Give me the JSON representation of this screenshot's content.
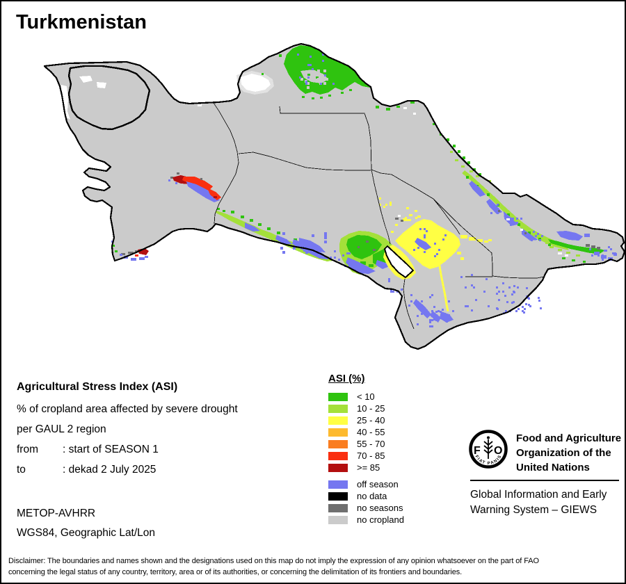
{
  "title": "Turkmenistan",
  "info": {
    "heading": "Agricultural Stress Index (ASI)",
    "subtitle_line1": "% of cropland area affected by severe drought",
    "subtitle_line2": "per GAUL 2 region",
    "from_label": "from",
    "from_value": ": start of SEASON 1",
    "to_label": "to",
    "to_value": ": dekad 2 July 2025",
    "sensor": "METOP-AVHRR",
    "projection": "WGS84, Geographic Lat/Lon"
  },
  "legend": {
    "title": "ASI (%)",
    "asi_classes": [
      {
        "label": "< 10",
        "color": "#2FC30F"
      },
      {
        "label": "10 - 25",
        "color": "#A4E03A"
      },
      {
        "label": "25 - 40",
        "color": "#FFFF44"
      },
      {
        "label": "40 - 55",
        "color": "#FDBA2F"
      },
      {
        "label": "55 - 70",
        "color": "#FA7D20"
      },
      {
        "label": "70 - 85",
        "color": "#FA2F10"
      },
      {
        "label": ">= 85",
        "color": "#B30F0F"
      }
    ],
    "other_classes": [
      {
        "label": "off season",
        "color": "#7577F0"
      },
      {
        "label": "no data",
        "color": "#000000"
      },
      {
        "label": "no seasons",
        "color": "#6F6F6F"
      },
      {
        "label": "no cropland",
        "color": "#CBCBCB"
      }
    ]
  },
  "branding": {
    "org_lines": [
      "Food and Agriculture",
      "Organization of the",
      "United Nations"
    ],
    "giews_lines": [
      "Global Information and Early",
      "Warning System – GIEWS"
    ],
    "logo_letter_f": "F",
    "logo_letter_o": "O",
    "logo_motto": "FIAT PANIS"
  },
  "disclaimer_lines": [
    "Disclaimer: The boundaries and names shown and the designations used on this map do not imply the expression of any opinion whatsoever on the part of FAO",
    "concerning the legal status of any country, territory, area or of its authorities, or concerning the delimitation of its frontiers and boundaries."
  ],
  "colors": {
    "land": "#CBCBCB",
    "outline": "#000000",
    "asi-low": "#2FC30F",
    "asi-10-25": "#A4E03A",
    "asi-25-40": "#FFFF44",
    "asi-40-55": "#FDBA2F",
    "asi-55-70": "#FA7D20",
    "asi-70-85": "#FA2F10",
    "asi-85": "#B30F0F",
    "off-season": "#7577F0",
    "no-data": "#000000",
    "no-seasons": "#6F6F6F",
    "background": "#FFFFFF"
  }
}
